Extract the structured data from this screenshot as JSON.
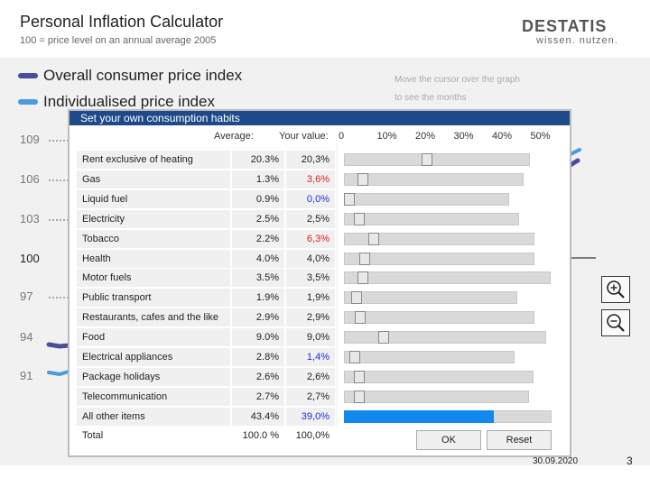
{
  "header": {
    "title": "Personal Inflation Calculator",
    "subtitle": "100 = price level on an annual average 2005",
    "logo": "DESTATIS",
    "logo_tagline": "wissen. nutzen."
  },
  "legend": [
    {
      "label": "Overall consumer price index",
      "color": "#4a4e9a"
    },
    {
      "label": "Individualised price index",
      "color": "#4a9adf"
    }
  ],
  "hint": {
    "line1": "Move the cursor over the graph",
    "line2": "to see the months"
  },
  "y_axis": [
    "109",
    "106",
    "103",
    "100",
    "97",
    "94",
    "91"
  ],
  "zoom": {
    "in_icon": "zoom-in-icon",
    "out_icon": "zoom-out-icon"
  },
  "dialog": {
    "title": "Set your own consumption habits",
    "columns": {
      "average": "Average:",
      "your_value": "Your value:"
    },
    "scale": [
      "0",
      "10%",
      "20%",
      "30%",
      "40%",
      "50%"
    ],
    "rows": [
      {
        "name": "Rent exclusive of heating",
        "average": "20.3%",
        "value": "20,3%",
        "value_color": "#222222",
        "share": 0.203
      },
      {
        "name": "Gas",
        "average": "1.3%",
        "value": "3,6%",
        "value_color": "#e0201a",
        "share": 0.036
      },
      {
        "name": "Liquid fuel",
        "average": "0.9%",
        "value": "0,0%",
        "value_color": "#1a2fd8",
        "share": 0.0
      },
      {
        "name": "Electricity",
        "average": "2.5%",
        "value": "2,5%",
        "value_color": "#222222",
        "share": 0.025
      },
      {
        "name": "Tobacco",
        "average": "2.2%",
        "value": "6,3%",
        "value_color": "#e0201a",
        "share": 0.063
      },
      {
        "name": "Health",
        "average": "4.0%",
        "value": "4,0%",
        "value_color": "#222222",
        "share": 0.04
      },
      {
        "name": "Motor fuels",
        "average": "3.5%",
        "value": "3,5%",
        "value_color": "#222222",
        "share": 0.035
      },
      {
        "name": "Public transport",
        "average": "1.9%",
        "value": "1,9%",
        "value_color": "#222222",
        "share": 0.019
      },
      {
        "name": "Restaurants, cafes and the like",
        "average": "2.9%",
        "value": "2,9%",
        "value_color": "#222222",
        "share": 0.029
      },
      {
        "name": "Food",
        "average": "9.0%",
        "value": "9,0%",
        "value_color": "#222222",
        "share": 0.09
      },
      {
        "name": "Electrical appliances",
        "average": "2.8%",
        "value": "1,4%",
        "value_color": "#1a2fd8",
        "share": 0.014
      },
      {
        "name": "Package holidays",
        "average": "2.6%",
        "value": "2,6%",
        "value_color": "#222222",
        "share": 0.026
      },
      {
        "name": "Telecommunication",
        "average": "2.7%",
        "value": "2,7%",
        "value_color": "#222222",
        "share": 0.027
      },
      {
        "name": "All other items",
        "average": "43.4%",
        "value": "39,0%",
        "value_color": "#1a2fd8",
        "share": 0.39
      }
    ],
    "total": {
      "name": "Total",
      "average": "100.0 %",
      "value": "100,0%"
    },
    "ok_label": "OK",
    "reset_label": "Reset"
  },
  "footer": {
    "date": "30.09.2020",
    "page": "3"
  }
}
